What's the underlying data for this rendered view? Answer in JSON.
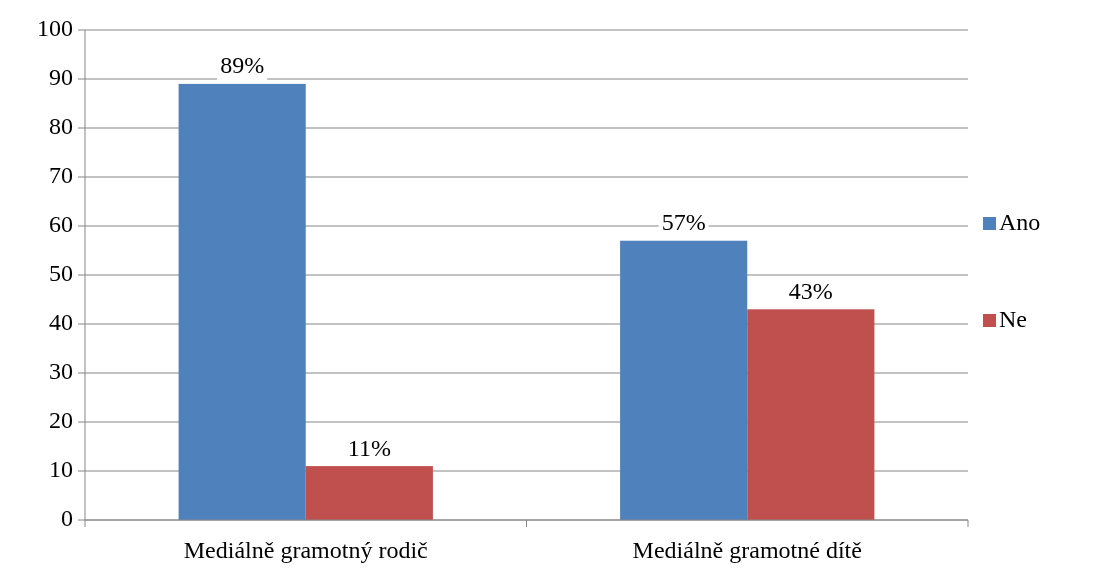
{
  "chart_data": {
    "type": "bar",
    "categories": [
      "Mediálně gramotný rodič",
      "Mediálně gramotné dítě"
    ],
    "series": [
      {
        "name": "Ano",
        "color": "#4f81bd",
        "values": [
          89,
          57
        ],
        "value_labels": [
          "89%",
          "57%"
        ]
      },
      {
        "name": "Ne",
        "color": "#c0504d",
        "values": [
          11,
          43
        ],
        "value_labels": [
          "11%",
          "43%"
        ]
      }
    ],
    "ylim": [
      0,
      100
    ],
    "yticks": [
      0,
      10,
      20,
      30,
      40,
      50,
      60,
      70,
      80,
      90,
      100
    ],
    "grid": "y",
    "legend": "right"
  }
}
